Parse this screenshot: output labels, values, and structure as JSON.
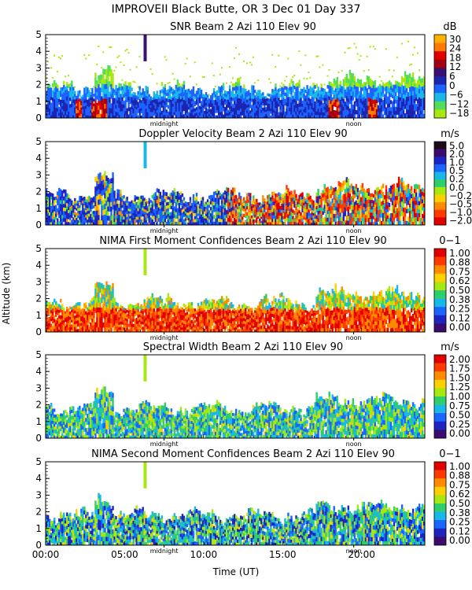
{
  "header": {
    "title": "IMPROVEII  Black Butte, OR    3 Dec 01 Day 337"
  },
  "chart_data": {
    "type": "heatmap",
    "title": "IMPROVEII  Black Butte, OR    3 Dec 01 Day 337",
    "xlabel": "Time (UT)",
    "ylabel": "Altitude (km)",
    "xlim": [
      0,
      24
    ],
    "ylim": [
      0,
      5
    ],
    "x_ticks": [
      "00:00",
      "05:00",
      "10:00",
      "15:00",
      "20:00"
    ],
    "x_tick_values": [
      0,
      5,
      10,
      15,
      20
    ],
    "markers": [
      {
        "label": "midnight",
        "time": 7.5
      },
      {
        "label": "noon",
        "time": 19.5
      }
    ],
    "panels": [
      {
        "title": "SNR Beam 2 Azi 110 Elev 90",
        "unit": "dB",
        "y_ticks": [
          "5",
          "4",
          "3",
          "2",
          "1",
          "0"
        ],
        "colorbar_labels": [
          "30",
          "24",
          "18",
          "12",
          "6",
          "0",
          "−6",
          "−12",
          "−18"
        ],
        "colors": [
          "#ffb000",
          "#ff7a00",
          "#e00000",
          "#a00010",
          "#3a1070",
          "#1d24b0",
          "#1c63ff",
          "#19b8e8",
          "#54dd5a",
          "#a8e812"
        ]
      },
      {
        "title": "Doppler Velocity Beam 2 Azi 110 Elev 90",
        "unit": "m/s",
        "y_ticks": [
          "5",
          "4",
          "3",
          "2",
          "1",
          "0"
        ],
        "colorbar_labels": [
          "5.0",
          "2.0",
          "1.0",
          "0.5",
          "0.2",
          "0.0",
          "−0.2",
          "−0.5",
          "−1.0",
          "−2.0"
        ],
        "colors": [
          "#1a0a1a",
          "#3a0c70",
          "#1d24c0",
          "#1a64ff",
          "#19b8e8",
          "#2ecf6a",
          "#a8e812",
          "#ffd000",
          "#ff8a00",
          "#ff3a00",
          "#e00000"
        ]
      },
      {
        "title": "NIMA First Moment Confidences Beam 2 Azi 110 Elev 90",
        "unit": "0−1",
        "y_ticks": [
          "5",
          "4",
          "3",
          "2",
          "1",
          "0"
        ],
        "colorbar_labels": [
          "1.00",
          "0.88",
          "0.75",
          "0.62",
          "0.50",
          "0.38",
          "0.25",
          "0.12",
          "0.00"
        ],
        "colors": [
          "#e00000",
          "#ff3a00",
          "#ff8a00",
          "#ffd000",
          "#a8e812",
          "#2ecf6a",
          "#19b8e8",
          "#1a64ff",
          "#1d24c0",
          "#3a0c70"
        ]
      },
      {
        "title": "Spectral Width Beam 2 Azi 110 Elev 90",
        "unit": "m/s",
        "y_ticks": [
          "5",
          "4",
          "3",
          "2",
          "1",
          "0"
        ],
        "colorbar_labels": [
          "2.00",
          "1.75",
          "1.50",
          "1.25",
          "1.00",
          "0.75",
          "0.50",
          "0.25",
          "0.00"
        ],
        "colors": [
          "#e00000",
          "#ff3a00",
          "#ff8a00",
          "#ffd000",
          "#a8e812",
          "#2ecf6a",
          "#19b8e8",
          "#1a64ff",
          "#1d24c0",
          "#3a0c70"
        ]
      },
      {
        "title": "NIMA Second Moment Confidences Beam 2 Azi 110 Elev 90",
        "unit": "0−1",
        "y_ticks": [
          "5",
          "4",
          "3",
          "2",
          "1",
          "0"
        ],
        "colorbar_labels": [
          "1.00",
          "0.88",
          "0.75",
          "0.62",
          "0.50",
          "0.38",
          "0.25",
          "0.12",
          "0.00"
        ],
        "colors": [
          "#e00000",
          "#ff3a00",
          "#ff8a00",
          "#ffd000",
          "#a8e812",
          "#2ecf6a",
          "#19b8e8",
          "#1a64ff",
          "#1d24c0",
          "#3a0c70"
        ]
      }
    ]
  }
}
